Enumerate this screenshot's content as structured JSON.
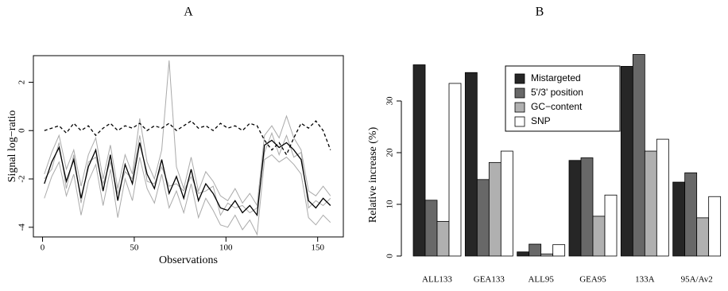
{
  "chart_data": [
    {
      "type": "line",
      "title": "A",
      "xlabel": "Observations",
      "ylabel": "Signal log−ratio",
      "x": [
        1,
        5,
        9,
        13,
        17,
        21,
        25,
        29,
        33,
        37,
        41,
        45,
        49,
        53,
        57,
        61,
        65,
        69,
        73,
        77,
        81,
        85,
        89,
        93,
        97,
        101,
        105,
        109,
        113,
        117,
        121,
        125,
        129,
        133,
        137,
        141,
        145,
        149,
        153,
        157
      ],
      "xlim": [
        -5,
        164
      ],
      "ylim": [
        -4.4,
        3.1
      ],
      "xticks": [
        0,
        50,
        100,
        150
      ],
      "yticks": [
        -4,
        -2,
        0,
        2
      ],
      "series": [
        {
          "color": "#aaaaaa",
          "dashed": false,
          "values": [
            -1.8,
            -0.9,
            -0.2,
            -1.6,
            -0.8,
            -2.3,
            -1.0,
            -0.3,
            -2.0,
            -0.6,
            -2.4,
            -1.0,
            -1.8,
            0.5,
            -1.3,
            -2.0,
            -0.8,
            2.9,
            -1.5,
            -2.4,
            -1.1,
            -2.5,
            -1.7,
            -2.1,
            -2.7,
            -2.9,
            -2.4,
            -3.0,
            -2.6,
            -3.1,
            -0.2,
            0.2,
            -0.3,
            0.6,
            -0.3,
            -0.8,
            -2.5,
            -2.7,
            -2.3,
            -2.7
          ]
        },
        {
          "color": "#aaaaaa",
          "dashed": false,
          "values": [
            -2.8,
            -1.9,
            -1.3,
            -2.7,
            -1.8,
            -3.5,
            -2.1,
            -1.4,
            -3.1,
            -1.6,
            -3.6,
            -2.0,
            -2.9,
            -1.1,
            -2.4,
            -3.0,
            -1.8,
            -3.2,
            -2.5,
            -3.4,
            -2.2,
            -3.6,
            -2.8,
            -3.3,
            -3.9,
            -4.0,
            -3.5,
            -4.1,
            -3.7,
            -4.3,
            -1.2,
            -1.0,
            -1.3,
            -1.1,
            -1.4,
            -1.8,
            -3.6,
            -3.9,
            -3.5,
            -3.8
          ]
        },
        {
          "color": "#aaaaaa",
          "dashed": false,
          "values": [
            -2.0,
            -1.6,
            -0.5,
            -2.4,
            -1.0,
            -3.0,
            -1.3,
            -1.1,
            -2.2,
            -1.3,
            -2.6,
            -1.7,
            -2.0,
            -0.2,
            -2.1,
            -2.2,
            -1.5,
            -2.3,
            -2.2,
            -2.5,
            -1.9,
            -2.6,
            -2.5,
            -2.3,
            -3.5,
            -3.0,
            -3.2,
            -3.1,
            -3.4,
            -3.2,
            -0.9,
            -0.1,
            -1.0,
            -0.2,
            -1.1,
            -0.9,
            -3.2,
            -2.9,
            -3.1,
            -2.8
          ]
        },
        {
          "color": "#000000",
          "dashed": false,
          "values": [
            -2.2,
            -1.3,
            -0.7,
            -2.1,
            -1.2,
            -2.8,
            -1.5,
            -0.8,
            -2.5,
            -1.0,
            -2.9,
            -1.4,
            -2.2,
            -0.5,
            -1.8,
            -2.4,
            -1.2,
            -2.6,
            -1.9,
            -2.8,
            -1.6,
            -2.9,
            -2.2,
            -2.6,
            -3.2,
            -3.3,
            -2.9,
            -3.4,
            -3.1,
            -3.5,
            -0.6,
            -0.4,
            -0.7,
            -0.5,
            -0.8,
            -1.2,
            -2.9,
            -3.2,
            -2.8,
            -3.1
          ]
        },
        {
          "color": "#000000",
          "dashed": true,
          "values": [
            0.0,
            0.1,
            0.2,
            -0.1,
            0.3,
            0.0,
            0.2,
            -0.2,
            0.1,
            0.3,
            0.0,
            0.2,
            0.1,
            0.3,
            0.0,
            0.2,
            0.1,
            0.3,
            0.0,
            0.2,
            0.4,
            0.1,
            0.2,
            0.0,
            0.3,
            0.1,
            0.2,
            0.0,
            0.3,
            0.2,
            -0.4,
            -0.8,
            -0.5,
            -1.0,
            -0.3,
            0.3,
            0.1,
            0.4,
            0.0,
            -0.8
          ]
        }
      ]
    },
    {
      "type": "bar",
      "title": "B",
      "ylabel": "Relative increase (%)",
      "categories": [
        "ALL133",
        "GEA133",
        "ALL95",
        "GEA95",
        "133A",
        "95A/Av2"
      ],
      "ylim": [
        0,
        40
      ],
      "yticks": [
        0,
        10,
        20,
        30
      ],
      "legend": "top-right",
      "series": [
        {
          "name": "Mistargeted",
          "color": "#262626",
          "values": [
            37,
            35.5,
            0.8,
            18.5,
            36.7,
            14.3
          ]
        },
        {
          "name": "5'/3' position",
          "color": "#686868",
          "values": [
            10.8,
            14.8,
            2.3,
            19,
            39,
            16.1
          ]
        },
        {
          "name": "GC−content",
          "color": "#b0b0b0",
          "values": [
            6.7,
            18.1,
            0.4,
            7.7,
            20.3,
            7.4
          ]
        },
        {
          "name": "SNP",
          "color": "#ffffff",
          "values": [
            33.4,
            20.3,
            2.2,
            11.8,
            22.6,
            11.5
          ]
        }
      ]
    }
  ]
}
